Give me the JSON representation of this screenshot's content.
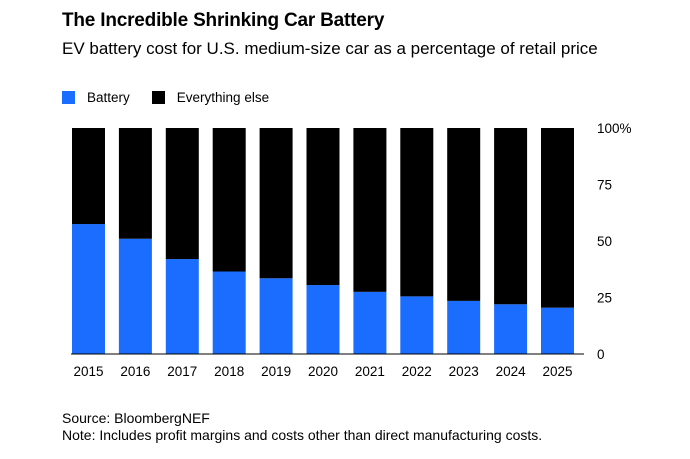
{
  "title": "The Incredible Shrinking Car Battery",
  "subtitle": "EV battery cost for U.S. medium-size car as a percentage of retail price",
  "legend": [
    {
      "label": "Battery",
      "color": "#1a6dff"
    },
    {
      "label": "Everything else",
      "color": "#000000"
    }
  ],
  "source": "Source: BloombergNEF",
  "note": "Note: Includes profit margins and costs other than direct manufacturing costs.",
  "chart_data": {
    "type": "bar",
    "stacked": true,
    "percent_stacked": true,
    "categories": [
      "2015",
      "2016",
      "2017",
      "2018",
      "2019",
      "2020",
      "2021",
      "2022",
      "2023",
      "2024",
      "2025"
    ],
    "series": [
      {
        "name": "Battery",
        "color": "#1a6dff",
        "values": [
          57.5,
          51,
          42,
          36.5,
          33.5,
          30.5,
          27.5,
          25.5,
          23.5,
          22,
          20.5
        ]
      },
      {
        "name": "Everything else",
        "color": "#000000",
        "values": [
          42.5,
          49,
          58,
          63.5,
          66.5,
          69.5,
          72.5,
          74.5,
          76.5,
          78,
          79.5
        ]
      }
    ],
    "ylim": [
      0,
      100
    ],
    "yticks": [
      0,
      25,
      50,
      75,
      100
    ],
    "ytick_labels": [
      "0",
      "25",
      "50",
      "75",
      "100%"
    ],
    "yaxis_position": "right",
    "grid": false,
    "legend_position": "top-left"
  }
}
